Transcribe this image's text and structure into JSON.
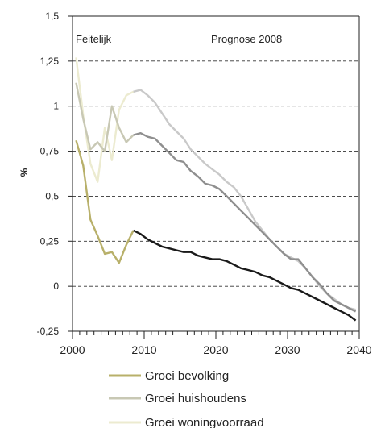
{
  "chart_data": {
    "type": "line",
    "ylabel": "%",
    "xlim": [
      2000,
      2040
    ],
    "ylim": [
      -0.25,
      1.5
    ],
    "yticks": [
      "1,5",
      "1,25",
      "1",
      "0,75",
      "0,5",
      "0,25",
      "0",
      "-0,25"
    ],
    "ytick_values": [
      1.5,
      1.25,
      1.0,
      0.75,
      0.5,
      0.25,
      0.0,
      -0.25
    ],
    "xticks": [
      "2000",
      "2010",
      "2020",
      "2030",
      "2040"
    ],
    "xtick_values": [
      2000,
      2010,
      2020,
      2030,
      2040
    ],
    "grid": "horizontal dashed",
    "annotations": {
      "actual": "Feitelijk",
      "forecast": "Prognose 2008"
    },
    "legend_position": "bottom",
    "series": [
      {
        "name": "Groei bevolking",
        "color": "#b8b06a",
        "x": [
          2000.5,
          2001.5,
          2002.5,
          2003.5,
          2004.5,
          2005.5,
          2006.5,
          2007.5,
          2008.5
        ],
        "y": [
          0.81,
          0.67,
          0.37,
          0.28,
          0.18,
          0.19,
          0.13,
          0.23,
          0.31
        ]
      },
      {
        "name": "Groei huishoudens",
        "color": "#c8c8b4",
        "x": [
          2000.5,
          2001.5,
          2002.5,
          2003.5,
          2004.5,
          2005.5,
          2006.5,
          2007.5,
          2008.5
        ],
        "y": [
          1.13,
          0.93,
          0.76,
          0.8,
          0.75,
          1.0,
          0.88,
          0.8,
          0.84
        ]
      },
      {
        "name": "Groei woningvoorraad",
        "color": "#ecebd0",
        "x": [
          2000.5,
          2001.5,
          2002.5,
          2003.5,
          2004.5,
          2005.5,
          2006.5,
          2007.5,
          2008.5
        ],
        "y": [
          1.27,
          0.95,
          0.68,
          0.58,
          0.88,
          0.7,
          0.98,
          1.06,
          1.08
        ]
      },
      {
        "name": "",
        "color": "#1a1a1a",
        "x": [
          2008.5,
          2009.5,
          2010.5,
          2011.5,
          2012.5,
          2013.5,
          2014.5,
          2015.5,
          2016.5,
          2017.5,
          2018.5,
          2019.5,
          2020.5,
          2021.5,
          2022.5,
          2023.5,
          2024.5,
          2025.5,
          2026.5,
          2027.5,
          2028.5,
          2029.5,
          2030.5,
          2031.5,
          2032.5,
          2033.5,
          2034.5,
          2035.5,
          2036.5,
          2037.5,
          2038.5,
          2039.5
        ],
        "y": [
          0.31,
          0.29,
          0.26,
          0.24,
          0.22,
          0.21,
          0.2,
          0.19,
          0.19,
          0.17,
          0.16,
          0.15,
          0.15,
          0.14,
          0.12,
          0.1,
          0.09,
          0.08,
          0.06,
          0.05,
          0.03,
          0.01,
          -0.01,
          -0.02,
          -0.04,
          -0.06,
          -0.08,
          -0.1,
          -0.12,
          -0.14,
          -0.16,
          -0.19
        ]
      },
      {
        "name": "",
        "color": "#8f8f8f",
        "x": [
          2008.5,
          2009.5,
          2010.5,
          2011.5,
          2012.5,
          2013.5,
          2014.5,
          2015.5,
          2016.5,
          2017.5,
          2018.5,
          2019.5,
          2020.5,
          2021.5,
          2022.5,
          2023.5,
          2024.5,
          2025.5,
          2026.5,
          2027.5,
          2028.5,
          2029.5,
          2030.5,
          2031.5,
          2032.5,
          2033.5,
          2034.5,
          2035.5,
          2036.5,
          2037.5,
          2038.5,
          2039.5
        ],
        "y": [
          0.84,
          0.85,
          0.83,
          0.82,
          0.78,
          0.74,
          0.7,
          0.69,
          0.64,
          0.61,
          0.57,
          0.56,
          0.54,
          0.5,
          0.46,
          0.42,
          0.38,
          0.34,
          0.3,
          0.26,
          0.22,
          0.18,
          0.15,
          0.15,
          0.1,
          0.05,
          0.01,
          -0.04,
          -0.08,
          -0.1,
          -0.12,
          -0.14
        ]
      },
      {
        "name": "",
        "color": "#c9c9c9",
        "x": [
          2008.5,
          2009.5,
          2010.5,
          2011.5,
          2012.5,
          2013.5,
          2014.5,
          2015.5,
          2016.5,
          2017.5,
          2018.5,
          2019.5,
          2020.5,
          2021.5,
          2022.5,
          2023.5,
          2024.5,
          2025.5,
          2026.5,
          2027.5,
          2028.5,
          2029.5,
          2030.5,
          2031.5,
          2032.5,
          2033.5,
          2034.5,
          2035.5,
          2036.5,
          2037.5,
          2038.5,
          2039.5
        ],
        "y": [
          1.08,
          1.09,
          1.06,
          1.02,
          0.96,
          0.9,
          0.86,
          0.82,
          0.76,
          0.72,
          0.68,
          0.65,
          0.62,
          0.58,
          0.55,
          0.5,
          0.43,
          0.36,
          0.31,
          0.26,
          0.22,
          0.18,
          0.16,
          0.14,
          0.1,
          0.05,
          0.0,
          -0.04,
          -0.07,
          -0.1,
          -0.12,
          -0.13
        ]
      }
    ]
  }
}
